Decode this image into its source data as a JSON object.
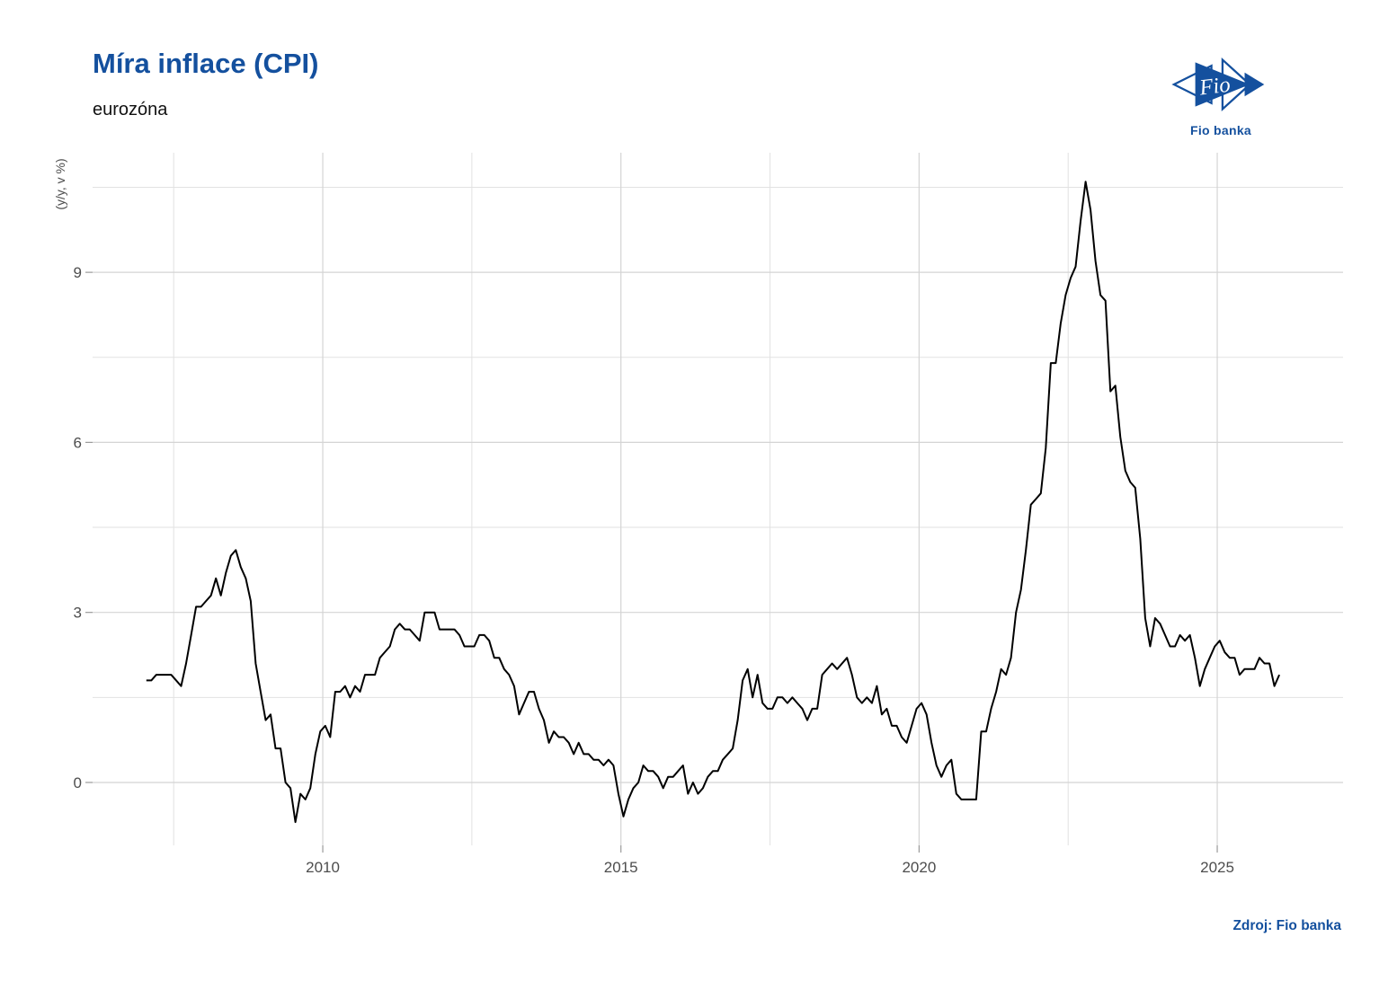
{
  "header": {
    "title": "Míra inflace (CPI)",
    "subtitle": "eurozóna"
  },
  "logo": {
    "brand": "Fio",
    "caption": "Fio banka",
    "color": "#14509E"
  },
  "source": {
    "label": "Zdroj: Fio banka"
  },
  "colors": {
    "accent_blue": "#14509E",
    "axis_text": "#4D4D4D",
    "grid_major": "#D4D4D4",
    "grid_minor": "#E2E2E2",
    "tick_mark": "#9A9A9A",
    "line": "#000000",
    "background": "#FFFFFF"
  },
  "chart_data": {
    "type": "line",
    "title": "Míra inflace (CPI)",
    "subtitle": "eurozóna",
    "xlabel": "",
    "ylabel": "(y/y, v %)",
    "legend": "none",
    "grid": true,
    "line_color": "#000000",
    "axes": {
      "xlim": [
        2006.14,
        2027.11
      ],
      "ylim": [
        -1.11,
        11.11
      ],
      "x_ticks": [
        2010,
        2015,
        2020,
        2025
      ],
      "y_ticks": [
        0,
        3,
        6,
        9
      ],
      "x_minor": [
        2007.5,
        2012.5,
        2017.5,
        2022.5
      ],
      "y_minor": [
        1.5,
        4.5,
        7.5,
        10.5
      ]
    },
    "series": [
      {
        "name": "Míra inflace (CPI) — eurozóna",
        "frequency": "monthly",
        "start": "2007-01",
        "end": "2026-01",
        "values": [
          1.8,
          1.8,
          1.9,
          1.9,
          1.9,
          1.9,
          1.8,
          1.7,
          2.1,
          2.6,
          3.1,
          3.1,
          3.2,
          3.3,
          3.6,
          3.3,
          3.7,
          4.0,
          4.1,
          3.8,
          3.6,
          3.2,
          2.1,
          1.6,
          1.1,
          1.2,
          0.6,
          0.6,
          0.0,
          -0.1,
          -0.7,
          -0.2,
          -0.3,
          -0.1,
          0.5,
          0.9,
          1.0,
          0.8,
          1.6,
          1.6,
          1.7,
          1.5,
          1.7,
          1.6,
          1.9,
          1.9,
          1.9,
          2.2,
          2.3,
          2.4,
          2.7,
          2.8,
          2.7,
          2.7,
          2.6,
          2.5,
          3.0,
          3.0,
          3.0,
          2.7,
          2.7,
          2.7,
          2.7,
          2.6,
          2.4,
          2.4,
          2.4,
          2.6,
          2.6,
          2.5,
          2.2,
          2.2,
          2.0,
          1.9,
          1.7,
          1.2,
          1.4,
          1.6,
          1.6,
          1.3,
          1.1,
          0.7,
          0.9,
          0.8,
          0.8,
          0.7,
          0.5,
          0.7,
          0.5,
          0.5,
          0.4,
          0.4,
          0.3,
          0.4,
          0.3,
          -0.2,
          -0.6,
          -0.3,
          -0.1,
          0.0,
          0.3,
          0.2,
          0.2,
          0.1,
          -0.1,
          0.1,
          0.1,
          0.2,
          0.3,
          -0.2,
          0.0,
          -0.2,
          -0.1,
          0.1,
          0.2,
          0.2,
          0.4,
          0.5,
          0.6,
          1.1,
          1.8,
          2.0,
          1.5,
          1.9,
          1.4,
          1.3,
          1.3,
          1.5,
          1.5,
          1.4,
          1.5,
          1.4,
          1.3,
          1.1,
          1.3,
          1.3,
          1.9,
          2.0,
          2.1,
          2.0,
          2.1,
          2.2,
          1.9,
          1.5,
          1.4,
          1.5,
          1.4,
          1.7,
          1.2,
          1.3,
          1.0,
          1.0,
          0.8,
          0.7,
          1.0,
          1.3,
          1.4,
          1.2,
          0.7,
          0.3,
          0.1,
          0.3,
          0.4,
          -0.2,
          -0.3,
          -0.3,
          -0.3,
          -0.3,
          0.9,
          0.9,
          1.3,
          1.6,
          2.0,
          1.9,
          2.2,
          3.0,
          3.4,
          4.1,
          4.9,
          5.0,
          5.1,
          5.9,
          7.4,
          7.4,
          8.1,
          8.6,
          8.9,
          9.1,
          9.9,
          10.6,
          10.1,
          9.2,
          8.6,
          8.5,
          6.9,
          7.0,
          6.1,
          5.5,
          5.3,
          5.2,
          4.3,
          2.9,
          2.4,
          2.9,
          2.8,
          2.6,
          2.4,
          2.4,
          2.6,
          2.5,
          2.6,
          2.2,
          1.7,
          2.0,
          2.2,
          2.4,
          2.5,
          2.3,
          2.2,
          2.2,
          1.9,
          2.0,
          2.0,
          2.0,
          2.2,
          2.1,
          2.1,
          1.7,
          1.9
        ]
      }
    ]
  }
}
